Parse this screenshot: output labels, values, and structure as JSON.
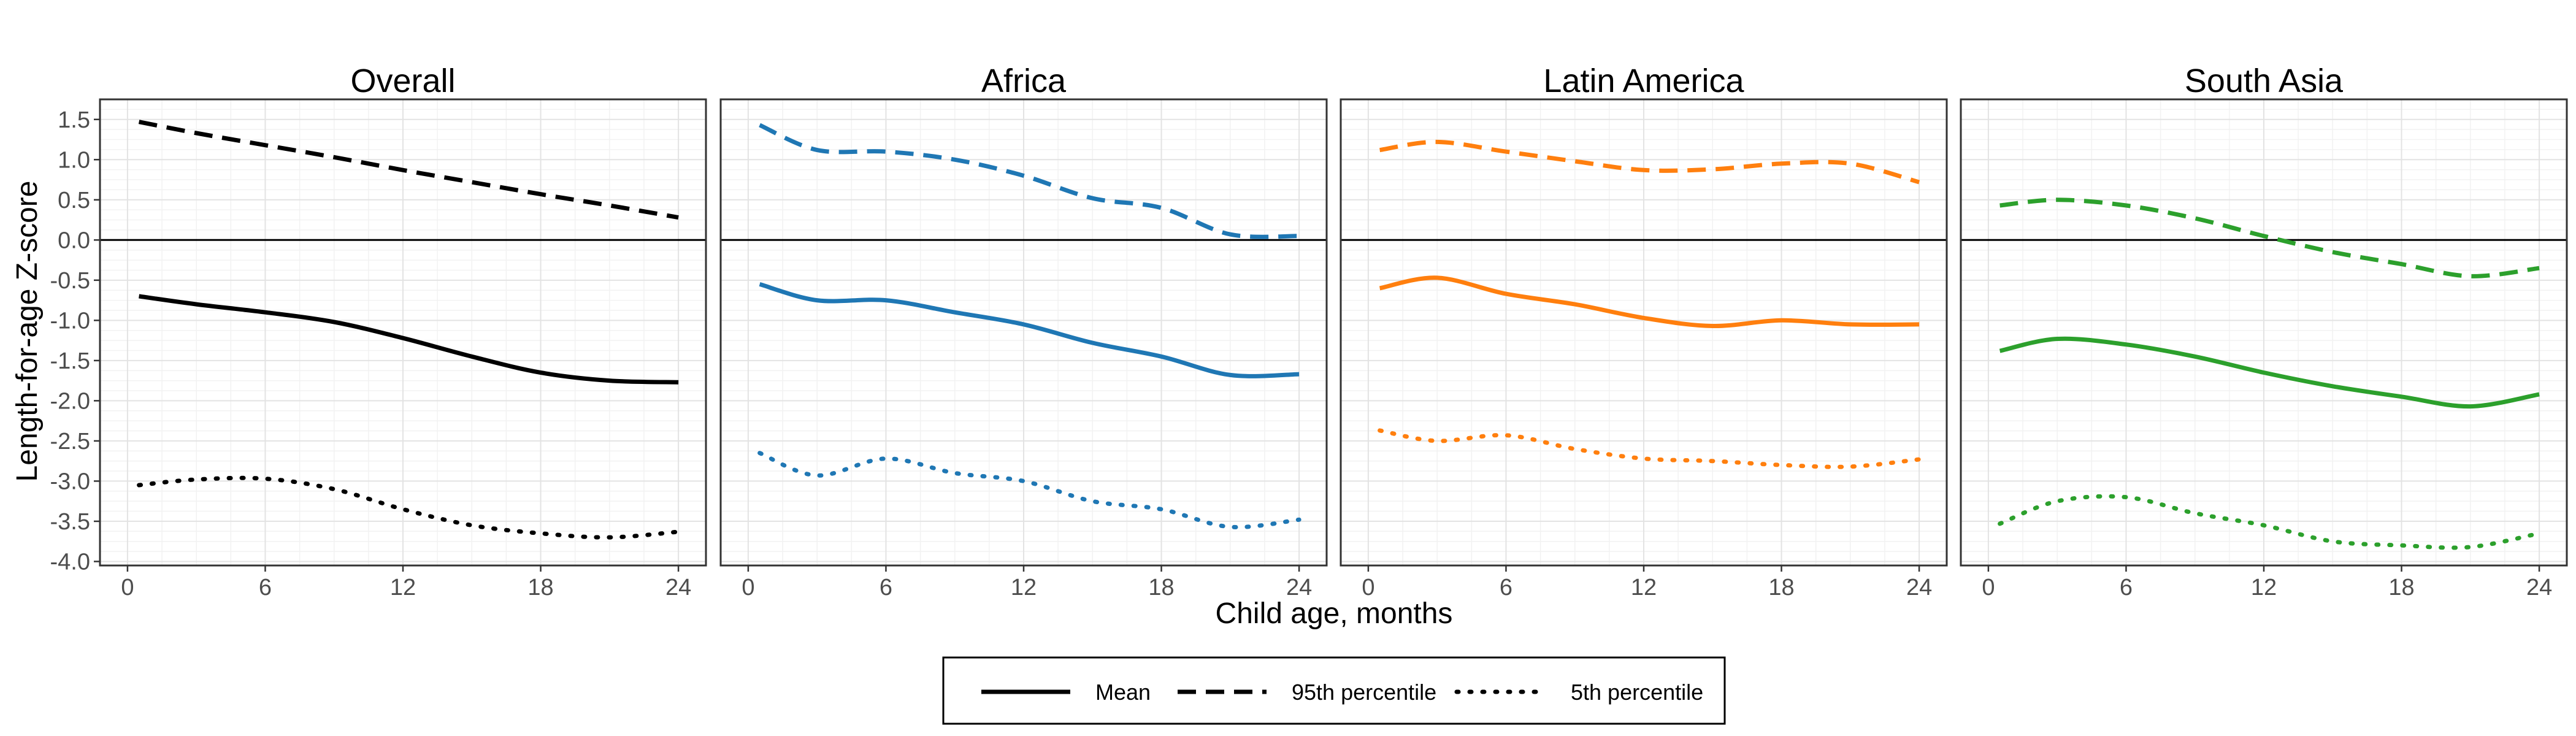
{
  "chart_data": {
    "type": "line",
    "xlabel": "Child age, months",
    "ylabel": "Length-for-age Z-score",
    "xlim": [
      -1.2,
      25.2
    ],
    "ylim": [
      -4.05,
      1.75
    ],
    "x_ticks": [
      0,
      6,
      12,
      18,
      24
    ],
    "x_tick_labels": [
      "0",
      "6",
      "12",
      "18",
      "24"
    ],
    "y_ticks": [
      1.5,
      1.0,
      0.5,
      0.0,
      -0.5,
      -1.0,
      -1.5,
      -2.0,
      -2.5,
      -3.0,
      -3.5,
      -4.0
    ],
    "y_tick_labels": [
      "1.5",
      "1.0",
      "0.5",
      "0.0",
      "-0.5",
      "-1.0",
      "-1.5",
      "-2.0",
      "-2.5",
      "-3.0",
      "-3.5",
      "-4.0"
    ],
    "reference_line": 0,
    "grid": true,
    "legend_position": "bottom",
    "legend": [
      {
        "label": "Mean",
        "style": "solid"
      },
      {
        "label": "95th percentile",
        "style": "dashed"
      },
      {
        "label": "5th percentile",
        "style": "dotted"
      }
    ],
    "x": [
      0.5,
      3,
      6,
      9,
      12,
      15,
      18,
      21,
      24
    ],
    "panels": [
      {
        "title": "Overall",
        "color": "#000000",
        "series": [
          {
            "name": "Mean",
            "style": "solid",
            "values": [
              -0.7,
              -0.8,
              -0.9,
              -1.02,
              -1.22,
              -1.45,
              -1.65,
              -1.75,
              -1.77
            ]
          },
          {
            "name": "95th percentile",
            "style": "dashed",
            "values": [
              1.47,
              1.33,
              1.18,
              1.03,
              0.87,
              0.72,
              0.57,
              0.43,
              0.28
            ]
          },
          {
            "name": "5th percentile",
            "style": "dotted",
            "values": [
              -3.05,
              -2.98,
              -2.97,
              -3.1,
              -3.35,
              -3.55,
              -3.65,
              -3.7,
              -3.63
            ]
          }
        ]
      },
      {
        "title": "Africa",
        "color": "#1f77b4",
        "series": [
          {
            "name": "Mean",
            "style": "solid",
            "values": [
              -0.55,
              -0.75,
              -0.75,
              -0.9,
              -1.05,
              -1.28,
              -1.45,
              -1.68,
              -1.67
            ]
          },
          {
            "name": "95th percentile",
            "style": "dashed",
            "values": [
              1.43,
              1.12,
              1.1,
              1.0,
              0.8,
              0.52,
              0.4,
              0.07,
              0.05
            ]
          },
          {
            "name": "5th percentile",
            "style": "dotted",
            "values": [
              -2.65,
              -2.93,
              -2.72,
              -2.9,
              -3.0,
              -3.25,
              -3.35,
              -3.57,
              -3.48
            ]
          }
        ]
      },
      {
        "title": "Latin America",
        "color": "#ff7f0e",
        "series": [
          {
            "name": "Mean",
            "style": "solid",
            "values": [
              -0.6,
              -0.47,
              -0.67,
              -0.8,
              -0.97,
              -1.07,
              -1.0,
              -1.05,
              -1.05
            ]
          },
          {
            "name": "95th percentile",
            "style": "dashed",
            "values": [
              1.12,
              1.22,
              1.1,
              0.98,
              0.87,
              0.88,
              0.95,
              0.95,
              0.72
            ]
          },
          {
            "name": "5th percentile",
            "style": "dotted",
            "values": [
              -2.37,
              -2.5,
              -2.43,
              -2.6,
              -2.72,
              -2.75,
              -2.8,
              -2.82,
              -2.73
            ]
          }
        ]
      },
      {
        "title": "South Asia",
        "color": "#2ca02c",
        "series": [
          {
            "name": "Mean",
            "style": "solid",
            "values": [
              -1.38,
              -1.23,
              -1.3,
              -1.45,
              -1.65,
              -1.82,
              -1.95,
              -2.07,
              -1.92
            ]
          },
          {
            "name": "95th percentile",
            "style": "dashed",
            "values": [
              0.43,
              0.5,
              0.43,
              0.27,
              0.05,
              -0.15,
              -0.3,
              -0.45,
              -0.35
            ]
          },
          {
            "name": "5th percentile",
            "style": "dotted",
            "values": [
              -3.53,
              -3.25,
              -3.2,
              -3.4,
              -3.55,
              -3.75,
              -3.8,
              -3.82,
              -3.65
            ]
          }
        ]
      }
    ]
  }
}
